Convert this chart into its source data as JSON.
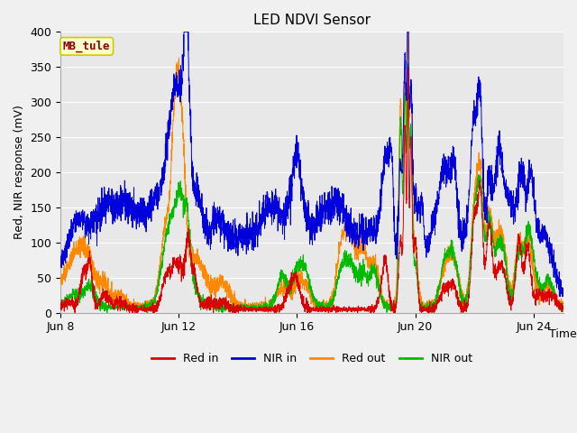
{
  "title": "LED NDVI Sensor",
  "ylabel": "Red, NIR response (mV)",
  "xlabel": "Time",
  "annotation": "MB_tule",
  "xlim_days": [
    0,
    17
  ],
  "ylim": [
    0,
    400
  ],
  "yticks": [
    0,
    50,
    100,
    150,
    200,
    250,
    300,
    350,
    400
  ],
  "xtick_labels": [
    "Jun 8",
    "Jun 12",
    "Jun 16",
    "Jun 20",
    "Jun 24"
  ],
  "xtick_positions": [
    0,
    4,
    8,
    12,
    16
  ],
  "colors": {
    "red_in": "#dd0000",
    "nir_in": "#0000dd",
    "red_out": "#ff8800",
    "nir_out": "#00bb00"
  },
  "legend_labels": [
    "Red in",
    "NIR in",
    "Red out",
    "NIR out"
  ],
  "fig_bg": "#f0f0f0",
  "plot_bg": "#e8e8e8",
  "grid_color": "#ffffff",
  "figsize": [
    6.4,
    4.8
  ],
  "dpi": 100
}
